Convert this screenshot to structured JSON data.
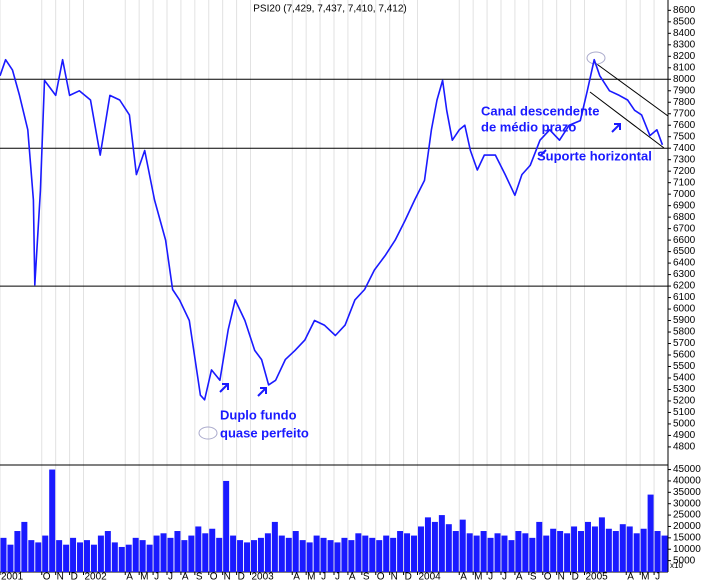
{
  "chart_data": {
    "type": "line",
    "title": "PSI20 (7,429, 7,437, 7,410, 7,412)",
    "x": [
      6.0,
      6.4,
      6.9,
      7.4,
      8.0,
      8.4,
      8.5,
      8.9,
      9.2,
      10.0,
      10.5,
      11.0,
      11.7,
      12.5,
      13.2,
      13.9,
      14.6,
      15.3,
      15.8,
      16.4,
      17.1,
      17.9,
      18.4,
      18.9,
      19.6,
      20.4,
      20.7,
      21.2,
      21.8,
      22.4,
      22.9,
      23.6,
      24.3,
      24.8,
      25.3,
      25.8,
      26.5,
      27.2,
      27.9,
      28.6,
      29.3,
      30.1,
      30.8,
      31.5,
      32.2,
      32.9,
      33.7,
      34.4,
      35.1,
      35.8,
      36.5,
      37.0,
      37.4,
      37.8,
      38.1,
      38.5,
      39.0,
      39.4,
      39.8,
      40.3,
      40.8,
      41.6,
      42.3,
      43.0,
      43.5,
      44.1,
      44.8,
      45.5,
      46.2,
      46.9,
      47.7,
      48.2,
      48.7,
      49.1,
      49.8,
      50.5,
      51.1,
      51.6,
      52.1,
      52.7,
      53.2,
      53.6
    ],
    "series": [
      {
        "color": "#1a1aff",
        "values": [
          8030,
          8170,
          8080,
          7860,
          7560,
          6950,
          6210,
          7030,
          7990,
          7860,
          8170,
          7860,
          7900,
          7820,
          7340,
          7860,
          7820,
          7690,
          7170,
          7380,
          6950,
          6600,
          6170,
          6080,
          5900,
          5250,
          5210,
          5470,
          5380,
          5820,
          6080,
          5900,
          5640,
          5560,
          5340,
          5380,
          5560,
          5640,
          5730,
          5900,
          5860,
          5770,
          5860,
          6080,
          6170,
          6340,
          6470,
          6600,
          6770,
          6950,
          7120,
          7560,
          7820,
          7990,
          7730,
          7470,
          7560,
          7600,
          7380,
          7210,
          7340,
          7340,
          7170,
          6990,
          7170,
          7250,
          7470,
          7560,
          7470,
          7600,
          7640,
          7900,
          8170,
          8030,
          7900,
          7860,
          7820,
          7730,
          7690,
          7510,
          7560,
          7430
        ]
      }
    ],
    "xlim": [
      6,
      54
    ],
    "ylim": [
      4660,
      8690
    ],
    "xticks": [
      {
        "value": 6,
        "label": "2001"
      },
      {
        "value": 9,
        "label": "O"
      },
      {
        "value": 10,
        "label": "N"
      },
      {
        "value": 11,
        "label": "D"
      },
      {
        "value": 12,
        "label": "2002"
      },
      {
        "value": 15,
        "label": "A"
      },
      {
        "value": 16,
        "label": "M"
      },
      {
        "value": 17,
        "label": "J"
      },
      {
        "value": 18,
        "label": "J"
      },
      {
        "value": 19,
        "label": "A"
      },
      {
        "value": 20,
        "label": "S"
      },
      {
        "value": 21,
        "label": "O"
      },
      {
        "value": 22,
        "label": "N"
      },
      {
        "value": 23,
        "label": "D"
      },
      {
        "value": 24,
        "label": "2003"
      },
      {
        "value": 27,
        "label": "A"
      },
      {
        "value": 28,
        "label": "M"
      },
      {
        "value": 29,
        "label": "J"
      },
      {
        "value": 30,
        "label": "J"
      },
      {
        "value": 31,
        "label": "A"
      },
      {
        "value": 32,
        "label": "S"
      },
      {
        "value": 33,
        "label": "O"
      },
      {
        "value": 34,
        "label": "N"
      },
      {
        "value": 35,
        "label": "D"
      },
      {
        "value": 36,
        "label": "2004"
      },
      {
        "value": 39,
        "label": "A"
      },
      {
        "value": 40,
        "label": "M"
      },
      {
        "value": 41,
        "label": "J"
      },
      {
        "value": 42,
        "label": "J"
      },
      {
        "value": 43,
        "label": "A"
      },
      {
        "value": 44,
        "label": "S"
      },
      {
        "value": 45,
        "label": "O"
      },
      {
        "value": 46,
        "label": "N"
      },
      {
        "value": 47,
        "label": "D"
      },
      {
        "value": 48,
        "label": "2005"
      },
      {
        "value": 51,
        "label": "A"
      },
      {
        "value": 52,
        "label": "M"
      },
      {
        "value": 53,
        "label": "J"
      }
    ],
    "yticks": [
      4800,
      4900,
      5000,
      5100,
      5200,
      5300,
      5400,
      5500,
      5600,
      5700,
      5800,
      5900,
      6000,
      6100,
      6200,
      6300,
      6400,
      6500,
      6600,
      6700,
      6800,
      6900,
      7000,
      7100,
      7200,
      7300,
      7400,
      7500,
      7600,
      7700,
      7800,
      7900,
      8000,
      8100,
      8200,
      8300,
      8400,
      8500,
      8600
    ],
    "reference_lines": [
      8000,
      7400,
      6200
    ],
    "grid": true,
    "annotations": [
      "Canal descendente",
      "de médio prazo",
      "Suporte horizontal",
      "Duplo fundo",
      "quase perfeito"
    ],
    "volume": {
      "color": "#1a1aff",
      "unit_label": "x10",
      "ylim": [
        0,
        47000
      ],
      "yticks": [
        5000,
        10000,
        15000,
        20000,
        25000,
        30000,
        35000,
        40000,
        45000
      ],
      "x": [
        6.25,
        6.75,
        7.25,
        7.75,
        8.25,
        8.75,
        9.25,
        9.75,
        10.25,
        10.75,
        11.25,
        11.75,
        12.25,
        12.75,
        13.25,
        13.75,
        14.25,
        14.75,
        15.25,
        15.75,
        16.25,
        16.75,
        17.25,
        17.75,
        18.25,
        18.75,
        19.25,
        19.75,
        20.25,
        20.75,
        21.25,
        21.75,
        22.25,
        22.75,
        23.25,
        23.75,
        24.25,
        24.75,
        25.25,
        25.75,
        26.25,
        26.75,
        27.25,
        27.75,
        28.25,
        28.75,
        29.25,
        29.75,
        30.25,
        30.75,
        31.25,
        31.75,
        32.25,
        32.75,
        33.25,
        33.75,
        34.25,
        34.75,
        35.25,
        35.75,
        36.25,
        36.75,
        37.25,
        37.75,
        38.25,
        38.75,
        39.25,
        39.75,
        40.25,
        40.75,
        41.25,
        41.75,
        42.25,
        42.75,
        43.25,
        43.75,
        44.25,
        44.75,
        45.25,
        45.75,
        46.25,
        46.75,
        47.25,
        47.75,
        48.25,
        48.75,
        49.25,
        49.75,
        50.25,
        50.75,
        51.25,
        51.75,
        52.25,
        52.75,
        53.25,
        53.75
      ],
      "values": [
        15000,
        12000,
        18000,
        22000,
        14000,
        13000,
        16000,
        45000,
        14000,
        12000,
        15000,
        13000,
        14000,
        12000,
        16000,
        18000,
        13000,
        11000,
        12000,
        15000,
        14000,
        12000,
        16000,
        17000,
        15000,
        18000,
        14000,
        16000,
        20000,
        17000,
        19000,
        15000,
        40000,
        16000,
        14000,
        13000,
        14000,
        15000,
        17000,
        22000,
        16000,
        15000,
        18000,
        14000,
        13000,
        16000,
        15000,
        14000,
        13000,
        15000,
        14000,
        17000,
        16000,
        15000,
        14000,
        16000,
        15000,
        18000,
        17000,
        16000,
        20000,
        24000,
        22000,
        25000,
        21000,
        18000,
        23000,
        17000,
        16000,
        18000,
        15000,
        17000,
        16000,
        14000,
        18000,
        17000,
        15000,
        22000,
        16000,
        19000,
        18000,
        17000,
        20000,
        18000,
        22000,
        20000,
        24000,
        19000,
        18000,
        21000,
        20000,
        17000,
        19000,
        34000,
        18000,
        16000
      ]
    }
  }
}
